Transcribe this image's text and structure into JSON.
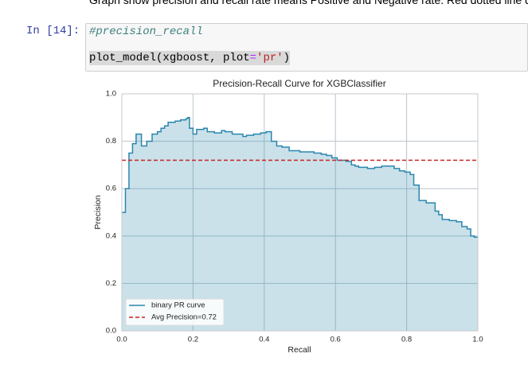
{
  "notebook": {
    "markdown_text": "Graph show precision and recall rate means Positive and Negative rate. Red dotted line d",
    "cell": {
      "prompt": "In [14]:",
      "code_lines": [
        [
          "#precision_recall"
        ],
        [
          "plot_model(xgboost, plot",
          "=",
          "'pr'",
          ")"
        ]
      ]
    }
  },
  "chart_data": {
    "type": "step",
    "title": "Precision-Recall Curve for XGBClassifier",
    "x_label": "Recall",
    "y_label": "Precision",
    "xlim": [
      0,
      1
    ],
    "ylim": [
      0,
      1
    ],
    "xticks": [
      0.0,
      0.2,
      0.4,
      0.6,
      0.8,
      1.0
    ],
    "yticks": [
      0.0,
      0.2,
      0.4,
      0.6,
      0.8,
      1.0
    ],
    "grid": true,
    "legend": "lower left",
    "series": [
      {
        "name": "binary PR curve",
        "color": "#2b86ad",
        "x": [
          0.0,
          0.01,
          0.02,
          0.03,
          0.04,
          0.055,
          0.07,
          0.085,
          0.1,
          0.11,
          0.12,
          0.13,
          0.15,
          0.165,
          0.18,
          0.185,
          0.19,
          0.2,
          0.21,
          0.23,
          0.24,
          0.26,
          0.28,
          0.29,
          0.31,
          0.34,
          0.35,
          0.37,
          0.39,
          0.405,
          0.42,
          0.435,
          0.45,
          0.47,
          0.5,
          0.54,
          0.56,
          0.575,
          0.59,
          0.605,
          0.63,
          0.645,
          0.655,
          0.665,
          0.69,
          0.71,
          0.73,
          0.765,
          0.78,
          0.795,
          0.81,
          0.82,
          0.835,
          0.855,
          0.88,
          0.89,
          0.9,
          0.92,
          0.94,
          0.955,
          0.97,
          0.98,
          0.99,
          1.0
        ],
        "values": [
          0.5,
          0.6,
          0.75,
          0.79,
          0.83,
          0.78,
          0.8,
          0.83,
          0.84,
          0.855,
          0.865,
          0.88,
          0.885,
          0.89,
          0.895,
          0.9,
          0.855,
          0.83,
          0.85,
          0.855,
          0.84,
          0.835,
          0.845,
          0.84,
          0.83,
          0.82,
          0.825,
          0.83,
          0.835,
          0.84,
          0.8,
          0.78,
          0.775,
          0.76,
          0.755,
          0.75,
          0.745,
          0.74,
          0.73,
          0.72,
          0.715,
          0.7,
          0.695,
          0.69,
          0.685,
          0.69,
          0.695,
          0.685,
          0.675,
          0.67,
          0.66,
          0.615,
          0.55,
          0.54,
          0.505,
          0.49,
          0.47,
          0.465,
          0.46,
          0.44,
          0.43,
          0.4,
          0.395,
          0.395
        ]
      },
      {
        "name": "Avg Precision=0.72",
        "color": "#c82323",
        "dashed": true,
        "values": [
          0.72
        ]
      }
    ]
  }
}
